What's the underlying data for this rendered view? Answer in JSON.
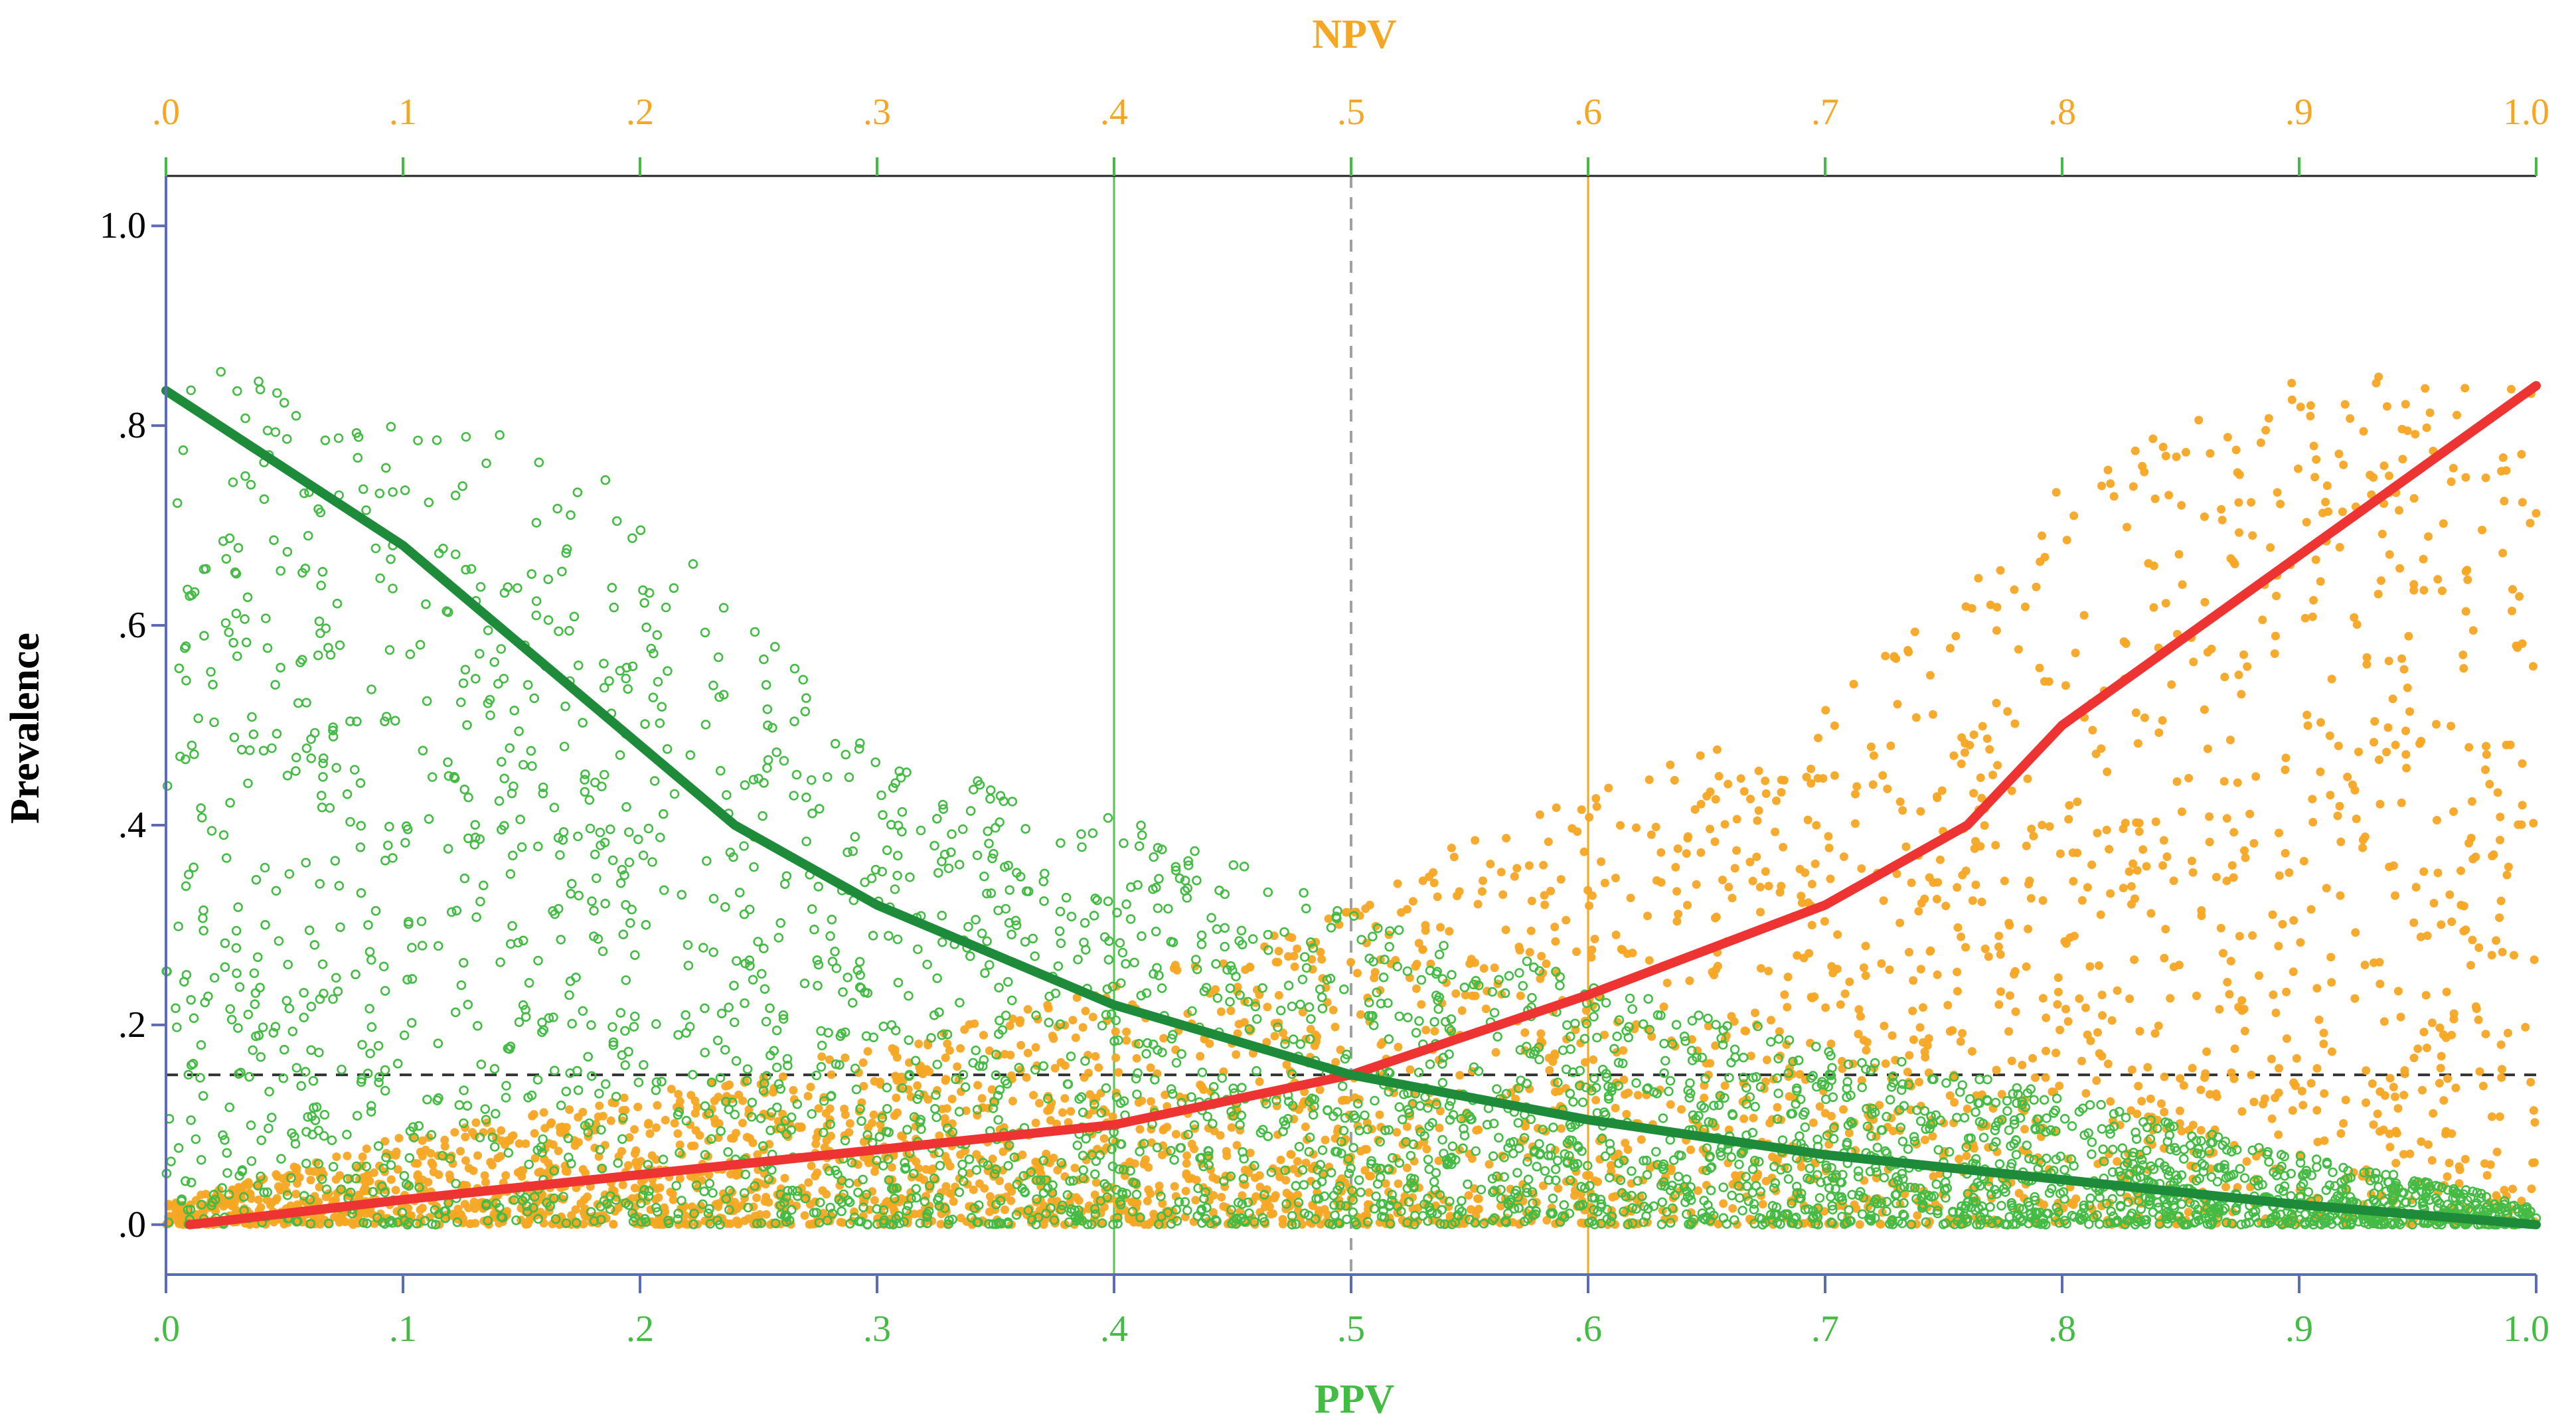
{
  "chart_data": {
    "type": "scatter",
    "title": "",
    "x_top_label": "NPV",
    "x_bottom_label": "PPV",
    "ylabel": "Prevalence",
    "xlim": [
      0,
      1
    ],
    "ylim": [
      -0.05,
      1.05
    ],
    "x_ticks": [
      {
        "value": 0.0,
        "label": ".0"
      },
      {
        "value": 0.1,
        "label": ".1"
      },
      {
        "value": 0.2,
        "label": ".2"
      },
      {
        "value": 0.3,
        "label": ".3"
      },
      {
        "value": 0.4,
        "label": ".4"
      },
      {
        "value": 0.5,
        "label": ".5"
      },
      {
        "value": 0.6,
        "label": ".6"
      },
      {
        "value": 0.7,
        "label": ".7"
      },
      {
        "value": 0.8,
        "label": ".8"
      },
      {
        "value": 0.9,
        "label": ".9"
      },
      {
        "value": 1.0,
        "label": "1.0"
      }
    ],
    "y_ticks": [
      {
        "value": 0.0,
        "label": ".0"
      },
      {
        "value": 0.2,
        "label": ".2"
      },
      {
        "value": 0.4,
        "label": ".4"
      },
      {
        "value": 0.6,
        "label": ".6"
      },
      {
        "value": 0.8,
        "label": ".8"
      },
      {
        "value": 1.0,
        "label": "1.0"
      }
    ],
    "reference_lines": [
      {
        "name": "ppv-0.4-line",
        "orientation": "vertical",
        "value": 0.4,
        "color": "#55c355",
        "style": "solid"
      },
      {
        "name": "center-0.5-line",
        "orientation": "vertical",
        "value": 0.5,
        "color": "#a0a0a0",
        "style": "dashed"
      },
      {
        "name": "npv-0.6-line",
        "orientation": "vertical",
        "value": 0.6,
        "color": "#f5a623",
        "style": "solid"
      },
      {
        "name": "prevalence-0.15-line",
        "orientation": "horizontal",
        "value": 0.15,
        "color": "#333333",
        "style": "dashed"
      }
    ],
    "series": [
      {
        "name": "NPV",
        "kind": "scatter",
        "axis": "top",
        "color": "#f5a623",
        "marker": "filled-circle",
        "approx_points": 5000,
        "envelope": {
          "x": [
            0,
            0.1,
            0.2,
            0.3,
            0.4,
            0.5,
            0.55,
            0.6,
            0.7,
            0.8,
            0.9,
            1.0
          ],
          "y_max": [
            0.02,
            0.09,
            0.13,
            0.18,
            0.24,
            0.32,
            0.39,
            0.43,
            0.52,
            0.75,
            0.85,
            0.86
          ]
        }
      },
      {
        "name": "PPV",
        "kind": "scatter",
        "axis": "bottom",
        "color": "#44bb44",
        "marker": "open-circle",
        "approx_points": 5000,
        "envelope": {
          "x": [
            0,
            0.1,
            0.2,
            0.3,
            0.4,
            0.45,
            0.5,
            0.6,
            0.7,
            0.8,
            0.9,
            1.0
          ],
          "y_max": [
            0.86,
            0.84,
            0.73,
            0.47,
            0.41,
            0.38,
            0.31,
            0.25,
            0.18,
            0.13,
            0.07,
            0.02
          ]
        }
      },
      {
        "name": "NPV fit",
        "kind": "line",
        "color": "#ee3333",
        "x": [
          0.01,
          0.1,
          0.2,
          0.3,
          0.4,
          0.5,
          0.6,
          0.7,
          0.76,
          0.8,
          0.9,
          1.0
        ],
        "y": [
          0.0,
          0.025,
          0.05,
          0.075,
          0.1,
          0.15,
          0.23,
          0.32,
          0.4,
          0.5,
          0.67,
          0.84
        ]
      },
      {
        "name": "PPV fit",
        "kind": "line",
        "color": "#1e8b3a",
        "x": [
          0.0,
          0.1,
          0.2,
          0.24,
          0.3,
          0.4,
          0.5,
          0.6,
          0.7,
          0.8,
          0.9,
          1.0
        ],
        "y": [
          0.835,
          0.68,
          0.48,
          0.4,
          0.32,
          0.22,
          0.15,
          0.105,
          0.07,
          0.045,
          0.02,
          0.0
        ]
      }
    ]
  }
}
